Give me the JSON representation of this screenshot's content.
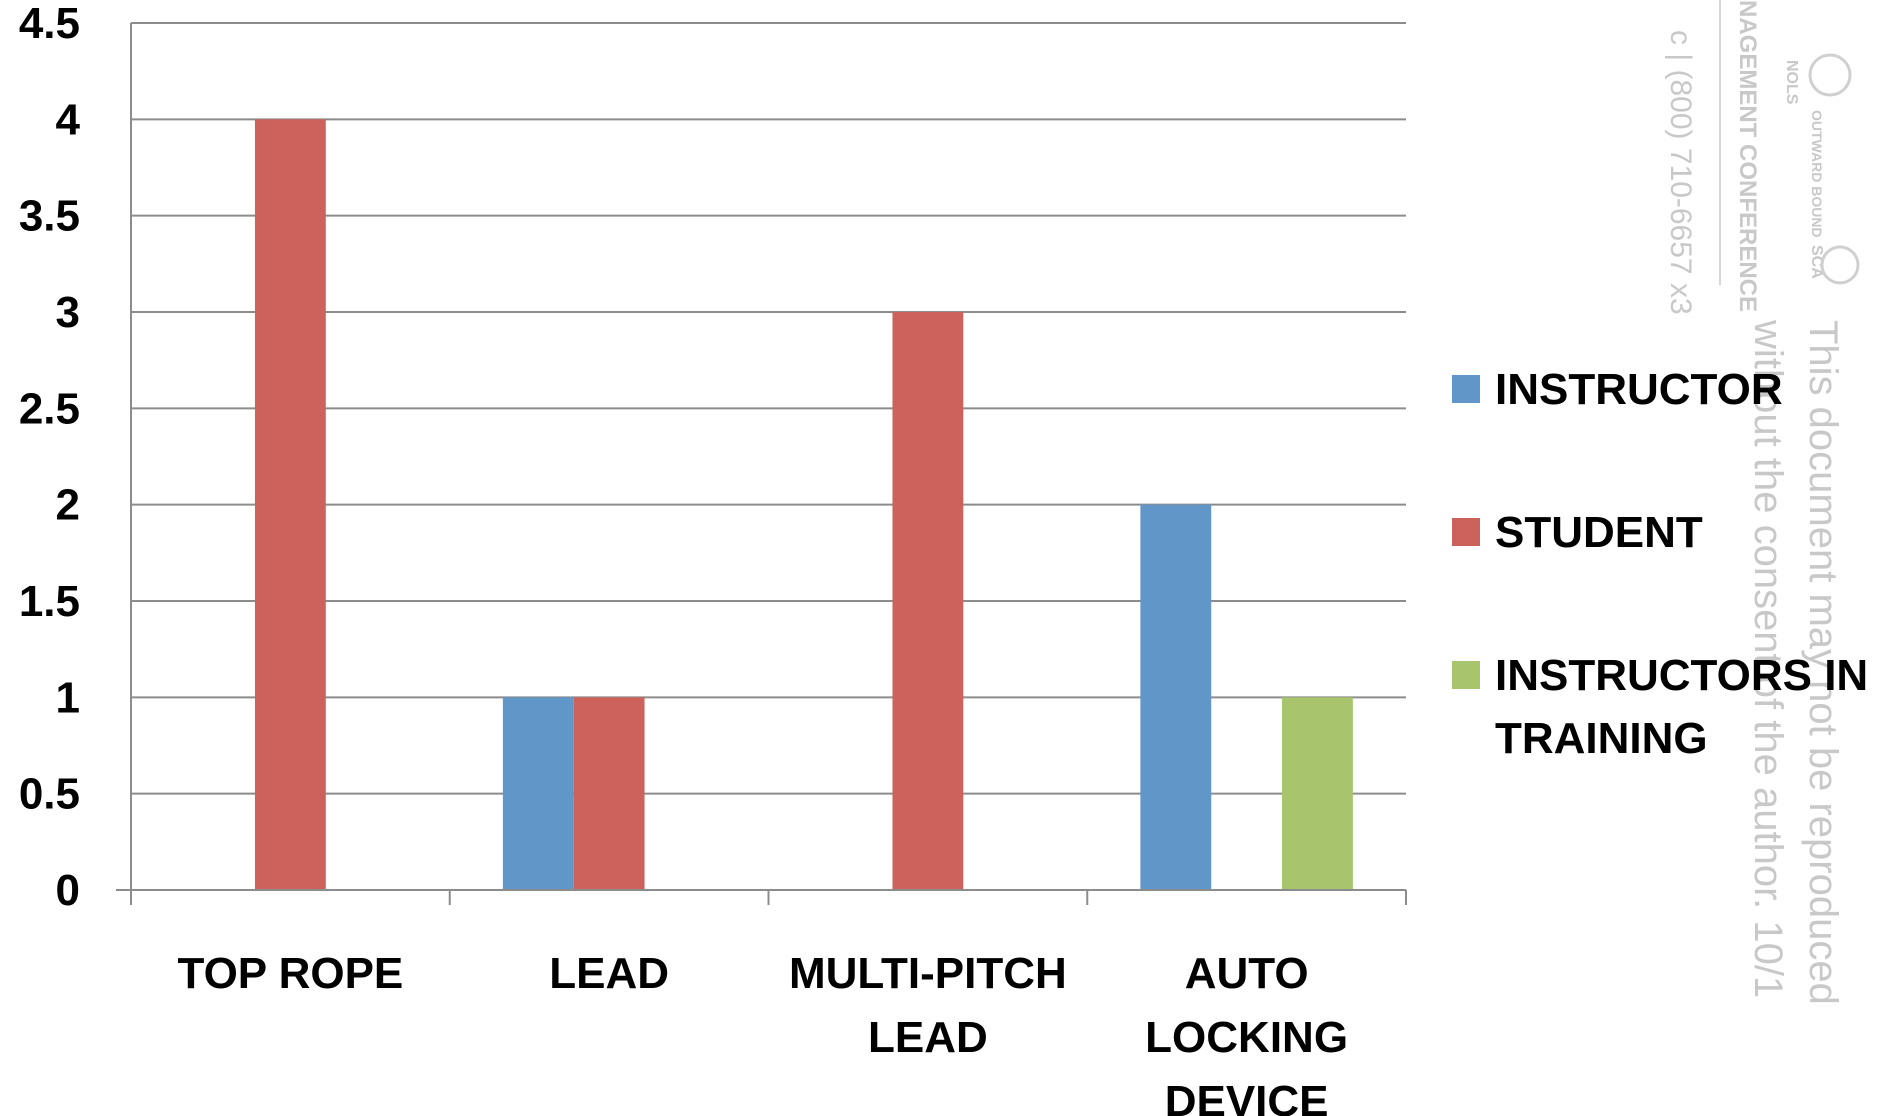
{
  "chart_data": {
    "type": "bar",
    "categories": [
      [
        "TOP ROPE"
      ],
      [
        "LEAD"
      ],
      [
        "MULTI-PITCH",
        "LEAD"
      ],
      [
        "AUTO",
        "LOCKING",
        "DEVICE"
      ]
    ],
    "series": [
      {
        "name": [
          "INSTRUCTOR"
        ],
        "color": "#6096c8",
        "values": [
          0,
          1,
          0,
          2
        ]
      },
      {
        "name": [
          "STUDENT"
        ],
        "color": "#cd625d",
        "values": [
          4,
          1,
          3,
          0
        ]
      },
      {
        "name": [
          "INSTRUCTORS IN",
          "TRAINING"
        ],
        "color": "#a8c46c",
        "values": [
          0,
          0,
          0,
          1
        ]
      }
    ],
    "ylim": [
      0,
      4.5
    ],
    "yticks": [
      0,
      0.5,
      1,
      1.5,
      2,
      2.5,
      3,
      3.5,
      4,
      4.5
    ],
    "grid": true,
    "legend_position": "right"
  },
  "watermark": {
    "lines": [
      "This document may not be reproduced",
      "without the consent of the author. 10/1"
    ],
    "phone": "c | (800) 710-6657 x3",
    "conference": "NAGEMENT CONFERENCE",
    "logos": [
      "NOLS",
      "OUTWARD BOUND",
      "SCA"
    ]
  }
}
